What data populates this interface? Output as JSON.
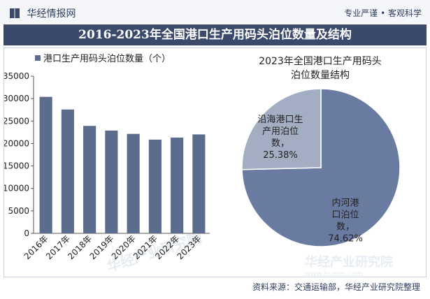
{
  "header": {
    "logo_text": "华经情报网",
    "slogan": "专业严谨 • 客观科学"
  },
  "page_title": "2016-2023年全国港口生产用码头泊位数量及结构",
  "footer": {
    "source": "资料来源：交通运输部，华经产业研究院整理"
  },
  "watermark": {
    "text": "华经产业研究院",
    "url": "www.huaon.com"
  },
  "colors": {
    "bar": "#5c6c8c",
    "pie_large": "#6a7ba2",
    "pie_small": "#a3aec3",
    "title_bar": "#3b4a6b"
  },
  "chart_data": [
    {
      "type": "bar",
      "legend": [
        "港口生产用码头泊位数量（个）"
      ],
      "categories": [
        "2016年",
        "2017年",
        "2018年",
        "2019年",
        "2020年",
        "2021年",
        "2022年",
        "2023年"
      ],
      "series": [
        {
          "name": "港口生产用码头泊位数量（个）",
          "values": [
            30388,
            27578,
            23919,
            22893,
            22142,
            20867,
            21323,
            22023
          ]
        }
      ],
      "ylim": [
        0,
        35000
      ],
      "yticks": [
        "0",
        "5000",
        "10000",
        "15000",
        "20000",
        "25000",
        "30000",
        "35000"
      ],
      "grid": false,
      "legend_position": "top-left"
    },
    {
      "type": "pie",
      "title": "2023年全国港口生产用码头泊位数量结构",
      "slices": [
        {
          "label": "内河港口泊位数",
          "value": 74.62,
          "percent_label": "74.62%",
          "color": "#6a7ba2"
        },
        {
          "label": "沿海港口生产用泊位数",
          "value": 25.38,
          "percent_label": "25.38%",
          "color": "#a3aec3"
        }
      ]
    }
  ]
}
